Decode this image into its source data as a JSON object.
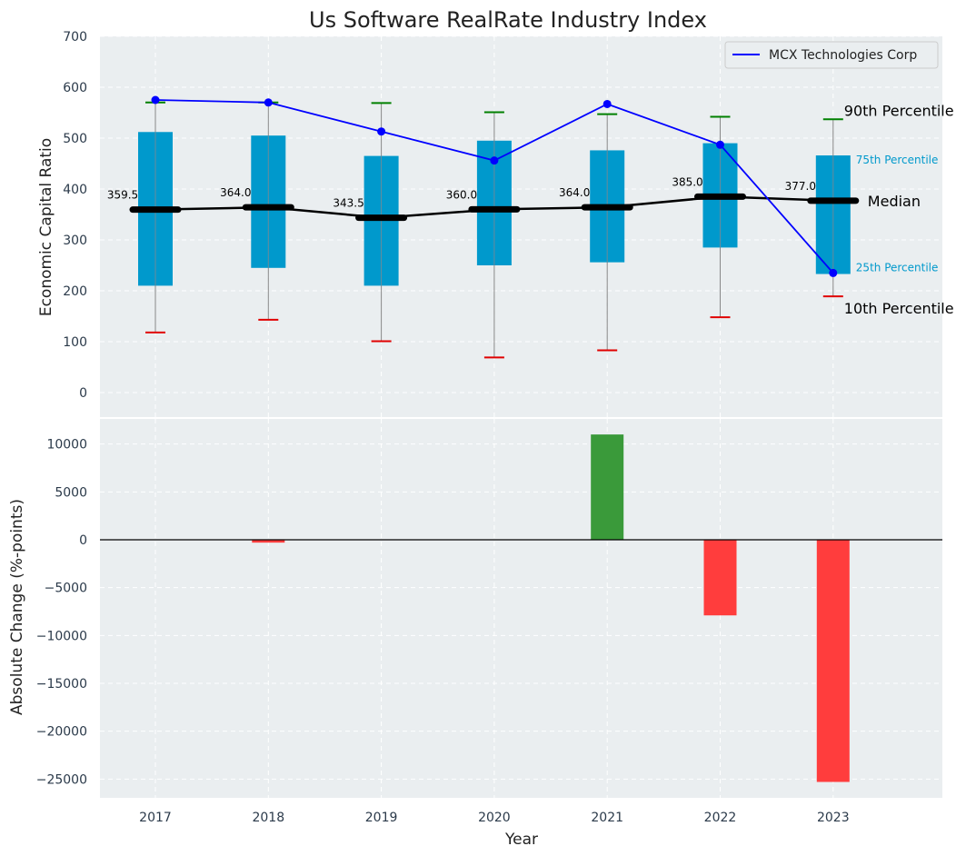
{
  "chart_data": [
    {
      "type": "box",
      "title": "Us Software RealRate Industry Index",
      "xlabel": "",
      "ylabel": "Economic Capital Ratio",
      "ylim": [
        -50,
        700
      ],
      "yticks": [
        0,
        100,
        200,
        300,
        400,
        500,
        600,
        700
      ],
      "grid": true,
      "categories": [
        "2017",
        "2018",
        "2019",
        "2020",
        "2021",
        "2022",
        "2023"
      ],
      "p10": [
        118,
        143,
        101,
        69,
        83,
        148,
        189
      ],
      "p25": [
        210,
        245,
        210,
        250,
        256,
        285,
        233
      ],
      "median": [
        359.5,
        364.0,
        343.5,
        360.0,
        364.0,
        385.0,
        377.0
      ],
      "p75": [
        512,
        505,
        465,
        495,
        476,
        490,
        466
      ],
      "p90": [
        570,
        570,
        569,
        551,
        547,
        542,
        537
      ],
      "median_labels": [
        "359.5",
        "364.0",
        "343.5",
        "360.0",
        "364.0",
        "385.0",
        "377.0"
      ],
      "company": {
        "name": "MCX Technologies Corp",
        "values": [
          575,
          570,
          513,
          456,
          567,
          487,
          235
        ]
      },
      "legend": {
        "label": "MCX Technologies Corp",
        "position": "top-right"
      },
      "annotations": {
        "p90": "90th Percentile",
        "p75": "75th Percentile",
        "median": "Median",
        "p25": "25th Percentile",
        "p10": "10th Percentile"
      },
      "colors": {
        "box": "#0099cc",
        "company": "#0000ff",
        "median": "#000000",
        "p90": "#008000",
        "p10": "#e00000",
        "whisker": "#888888"
      }
    },
    {
      "type": "bar",
      "xlabel": "Year",
      "ylabel": "Absolute Change (%-points)",
      "ylim": [
        -27000,
        13000
      ],
      "yticks": [
        -25000,
        -20000,
        -15000,
        -10000,
        -5000,
        0,
        5000,
        10000
      ],
      "ytick_labels": [
        "−25000",
        "−20000",
        "−15000",
        "−10000",
        "−5000",
        "0",
        "5000",
        "10000"
      ],
      "grid": true,
      "categories": [
        "2017",
        "2018",
        "2019",
        "2020",
        "2021",
        "2022",
        "2023"
      ],
      "values": [
        0,
        -300,
        0,
        0,
        11000,
        -7900,
        -25300
      ],
      "colors": {
        "positive": "#3a9a3a",
        "negative": "#ff3d3d"
      }
    }
  ],
  "colors": {
    "plot_bg": "#eaeef0",
    "grid": "#ffffff",
    "text": "#2b3a4a"
  }
}
